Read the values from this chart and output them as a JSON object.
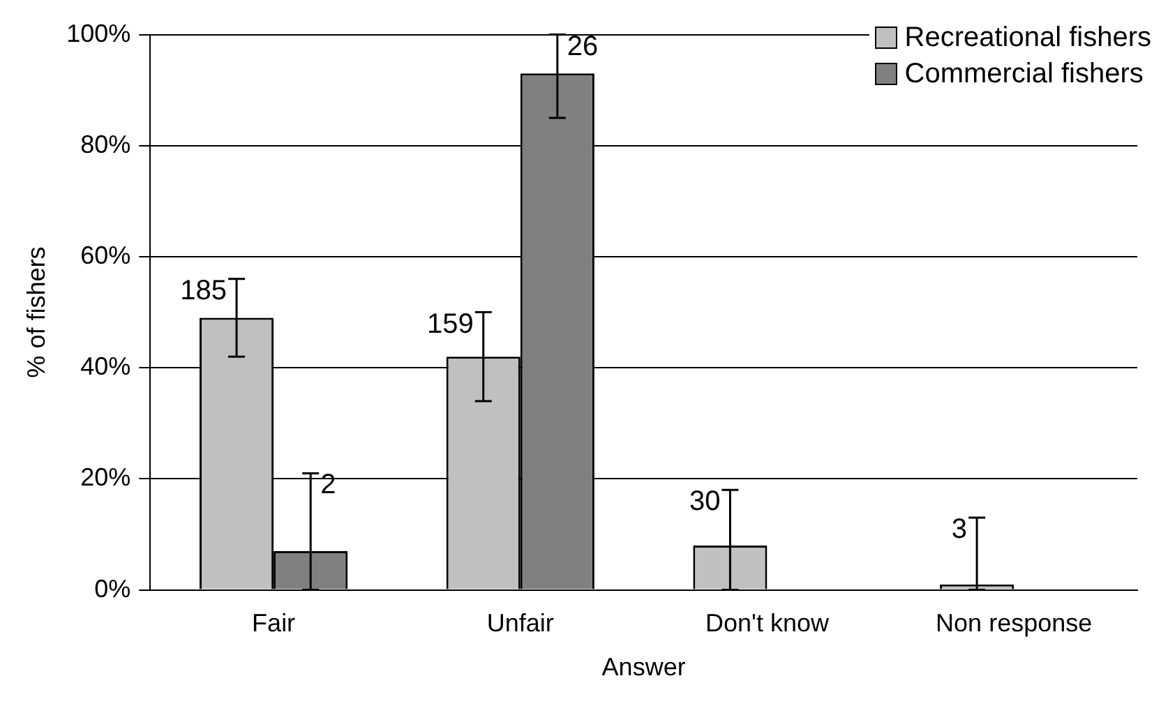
{
  "chart_data": {
    "type": "bar",
    "xlabel": "Answer",
    "ylabel": "% of fishers",
    "categories": [
      "Fair",
      "Unfair",
      "Don't know",
      "Non response"
    ],
    "series": [
      {
        "name": "Recreational fishers",
        "color": "#c0c0c0",
        "values": [
          49,
          42,
          8,
          1
        ],
        "errors": [
          7,
          8,
          [
            0,
            18
          ],
          [
            0,
            13
          ]
        ]
      },
      {
        "name": "Commercial fishers",
        "color": "#808080",
        "values": [
          7,
          93,
          0,
          null
        ],
        "errors": [
          [
            0,
            21
          ],
          [
            85,
            100
          ],
          null,
          null
        ]
      }
    ],
    "annotations": [
      {
        "text": "185",
        "x": "Fair",
        "y": 49
      },
      {
        "text": "2",
        "x": "Fair",
        "y": 7
      },
      {
        "text": "159",
        "x": "Unfair",
        "y": 42
      },
      {
        "text": "26",
        "x": "Unfair",
        "y": 93
      },
      {
        "text": "30",
        "x": "Don't know",
        "y": 8
      },
      {
        "text": "3",
        "x": "Non response",
        "y": 1
      }
    ],
    "ylim": [
      0,
      100
    ],
    "yticks": [
      {
        "value": 0,
        "label": "0%"
      },
      {
        "value": 20,
        "label": "20%"
      },
      {
        "value": 40,
        "label": "40%"
      },
      {
        "value": 60,
        "label": "60%"
      },
      {
        "value": 80,
        "label": "80%"
      },
      {
        "value": 100,
        "label": "100%"
      }
    ],
    "grid": "y",
    "legend": "top right"
  }
}
